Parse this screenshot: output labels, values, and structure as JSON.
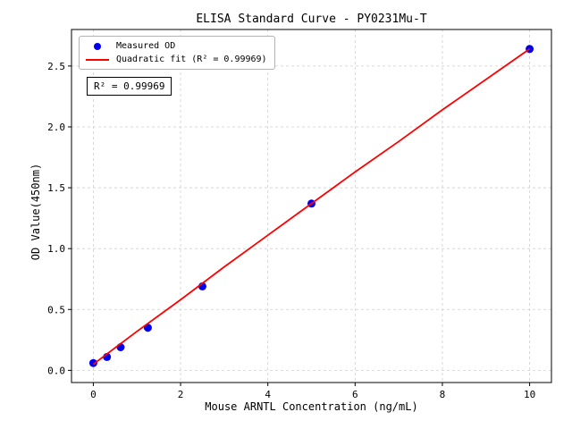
{
  "chart_data": {
    "type": "scatter",
    "title": "ELISA Standard Curve - PY0231Mu-T",
    "xlabel": "Mouse ARNTL Concentration (ng/mL)",
    "ylabel": "OD Value(450nm)",
    "xlim": [
      -0.5,
      10.5
    ],
    "ylim": [
      -0.1,
      2.8
    ],
    "x_ticks": [
      0,
      2,
      4,
      6,
      8,
      10
    ],
    "x_tick_labels": [
      "0",
      "2",
      "4",
      "6",
      "8",
      "10"
    ],
    "y_ticks": [
      0.0,
      0.5,
      1.0,
      1.5,
      2.0,
      2.5
    ],
    "y_tick_labels": [
      "0.0",
      "0.5",
      "1.0",
      "1.5",
      "2.0",
      "2.5"
    ],
    "grid": true,
    "legend_position": "upper left",
    "annotation": "R² = 0.99969",
    "series": [
      {
        "name": "Measured OD",
        "type": "scatter",
        "color": "#0000ee",
        "x": [
          0,
          0.313,
          0.625,
          1.25,
          2.5,
          5,
          10
        ],
        "y": [
          0.06,
          0.11,
          0.19,
          0.35,
          0.69,
          1.37,
          2.64
        ]
      },
      {
        "name": "Quadratic fit (R² = 0.99969)",
        "type": "line",
        "color": "#ff0000",
        "x": [
          0,
          1,
          2,
          3,
          4,
          5,
          6,
          7,
          8,
          9,
          10
        ],
        "y": [
          0.05,
          0.32,
          0.58,
          0.85,
          1.11,
          1.37,
          1.63,
          1.88,
          2.14,
          2.39,
          2.64
        ]
      }
    ]
  },
  "style": {
    "grid_color": "#cfcfcf",
    "axis_color": "#000000"
  }
}
